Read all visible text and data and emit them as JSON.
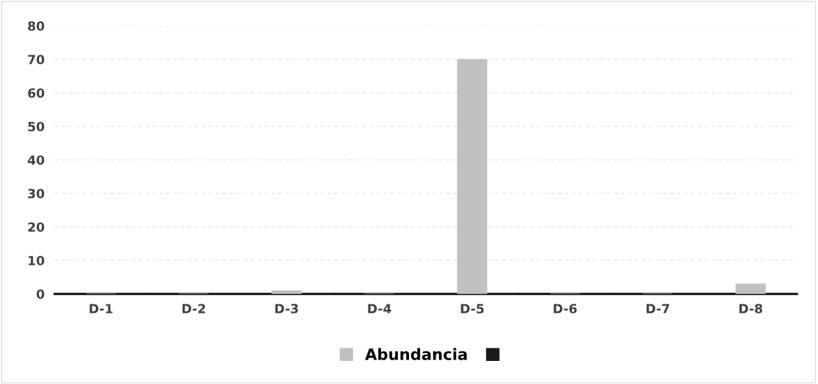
{
  "chart_data": {
    "type": "bar",
    "categories": [
      "D-1",
      "D-2",
      "D-3",
      "D-4",
      "D-5",
      "D-6",
      "D-7",
      "D-8"
    ],
    "series": [
      {
        "name": "Abundancia",
        "color": "#c0c0c0",
        "values": [
          0,
          0,
          1,
          0,
          70,
          0,
          0,
          3
        ]
      },
      {
        "color": "#1a1a1a",
        "values": [
          0,
          0,
          0,
          0,
          0,
          0,
          0,
          0
        ]
      }
    ],
    "ylim": [
      0,
      80
    ],
    "yticks": [
      0,
      10,
      20,
      30,
      40,
      50,
      60,
      70,
      80
    ],
    "grid": "y",
    "legend": "bottom"
  }
}
